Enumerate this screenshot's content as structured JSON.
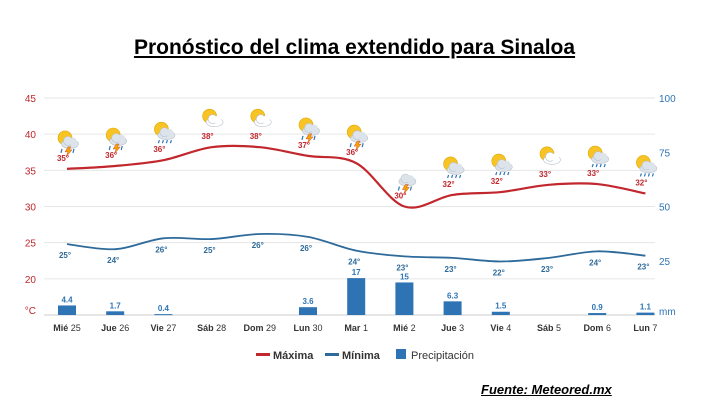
{
  "title": "Pronóstico del clima extendido para Sinaloa",
  "source": "Fuente: Meteored.mx",
  "chart_data": {
    "type": "line",
    "title": "Pronóstico del clima extendido para Sinaloa",
    "categories": [
      {
        "dow": "Mié",
        "day": "25"
      },
      {
        "dow": "Jue",
        "day": "26"
      },
      {
        "dow": "Vie",
        "day": "27"
      },
      {
        "dow": "Sáb",
        "day": "28"
      },
      {
        "dow": "Dom",
        "day": "29"
      },
      {
        "dow": "Lun",
        "day": "30"
      },
      {
        "dow": "Mar",
        "day": "1"
      },
      {
        "dow": "Mié",
        "day": "2"
      },
      {
        "dow": "Jue",
        "day": "3"
      },
      {
        "dow": "Vie",
        "day": "4"
      },
      {
        "dow": "Sáb",
        "day": "5"
      },
      {
        "dow": "Dom",
        "day": "6"
      },
      {
        "dow": "Lun",
        "day": "7"
      }
    ],
    "left_axis": {
      "unit": "°C",
      "ticks": [
        20,
        25,
        30,
        35,
        40,
        45
      ],
      "range": [
        15,
        45
      ]
    },
    "right_axis": {
      "unit": "mm",
      "ticks": [
        25,
        50,
        75,
        100
      ],
      "range": [
        0,
        100
      ]
    },
    "grid": true,
    "legend_position": "bottom",
    "series": [
      {
        "name": "Máxima",
        "type": "line",
        "axis": "left",
        "color": "#c1272d",
        "values": [
          35.2,
          35.6,
          36.4,
          38.2,
          38.2,
          37.0,
          36.0,
          30.0,
          31.6,
          32.0,
          33.0,
          33.1,
          31.8
        ],
        "labels": [
          "35°",
          "36°",
          "36°",
          "38°",
          "38°",
          "37°",
          "36°",
          "30°",
          "32°",
          "32°",
          "33°",
          "33°",
          "32°"
        ]
      },
      {
        "name": "Mínima",
        "type": "line",
        "axis": "left",
        "color": "#2e6a9a",
        "values": [
          24.8,
          24.1,
          25.6,
          25.5,
          26.2,
          25.8,
          23.9,
          23.1,
          22.9,
          22.4,
          22.9,
          23.8,
          23.2
        ],
        "labels": [
          "25°",
          "24°",
          "26°",
          "25°",
          "26°",
          "26°",
          "24°",
          "23°",
          "23°",
          "22°",
          "23°",
          "24°",
          "23°"
        ]
      },
      {
        "name": "Precipitación",
        "type": "bar",
        "axis": "right",
        "color": "#2e74b5",
        "values": [
          4.4,
          1.7,
          0.4,
          0,
          0,
          3.6,
          17,
          15,
          6.3,
          1.5,
          0,
          0.9,
          1.1
        ],
        "labels": [
          "4.4",
          "1.7",
          "0.4",
          "",
          "",
          "3.6",
          "17",
          "15",
          "6.3",
          "1.5",
          "",
          "0.9",
          "1.1"
        ]
      }
    ],
    "icons": [
      "sun-cloud-storm-icon",
      "sun-cloud-storm-icon",
      "sun-cloud-rain-icon",
      "sun-cloud-icon",
      "sun-cloud-icon",
      "sun-cloud-storm-icon",
      "sun-cloud-storm-icon",
      "cloud-storm-icon",
      "sun-cloud-rain-icon",
      "sun-cloud-rain-icon",
      "sun-cloud-icon",
      "sun-cloud-rain-icon",
      "sun-cloud-rain-icon"
    ]
  }
}
